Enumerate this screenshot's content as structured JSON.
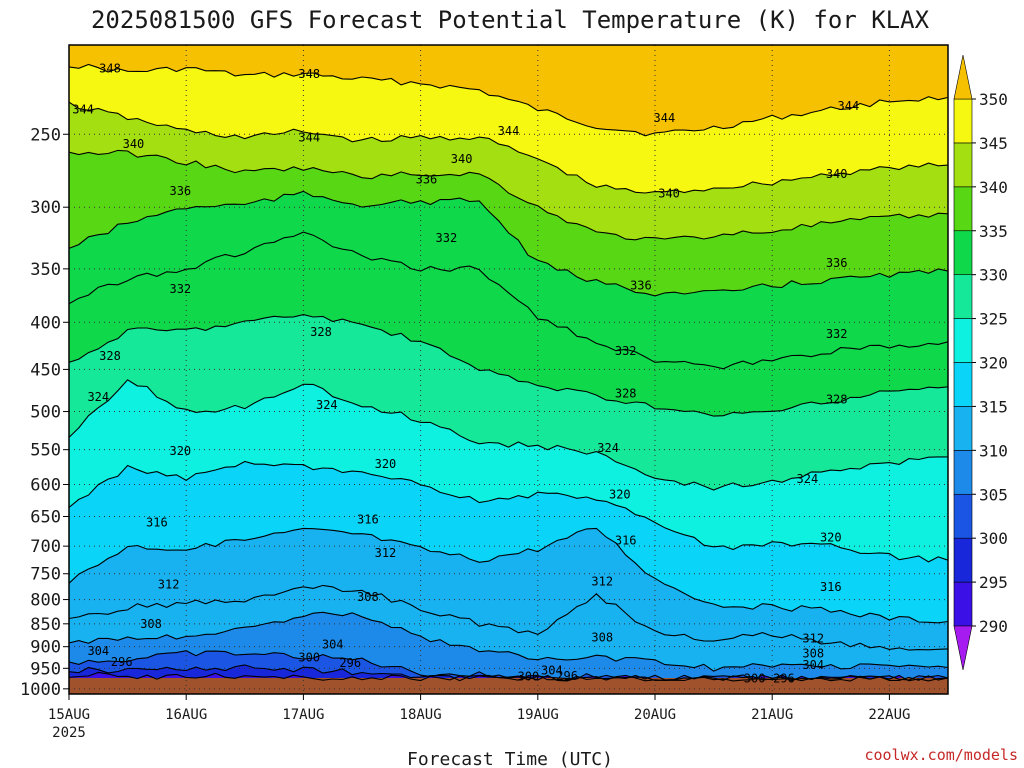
{
  "chart_data": {
    "type": "heatmap",
    "title": "2025081500 GFS Forecast Potential Temperature (K) for KLAX",
    "xlabel": "Forecast Time (UTC)",
    "ylabel": "",
    "credit": "coolwx.com/models",
    "x_ticks": [
      "15AUG",
      "16AUG",
      "17AUG",
      "18AUG",
      "19AUG",
      "20AUG",
      "21AUG",
      "22AUG"
    ],
    "x_year": "2025",
    "xlim_days": [
      0,
      7.5
    ],
    "y_ticks": [
      250,
      300,
      350,
      400,
      450,
      500,
      550,
      600,
      650,
      700,
      750,
      800,
      850,
      900,
      950,
      1000
    ],
    "ylim_hpa": [
      200,
      1013
    ],
    "y_scale": "log",
    "grid": true,
    "colorbar": {
      "levels": [
        290,
        295,
        300,
        305,
        310,
        315,
        320,
        325,
        330,
        335,
        340,
        345,
        350
      ],
      "labels": [
        "290",
        "295",
        "300",
        "305",
        "310",
        "315",
        "320",
        "325",
        "330",
        "335",
        "340",
        "345",
        "350"
      ],
      "colors": [
        "#a51bf0",
        "#3a10e6",
        "#1727d9",
        "#1a56e3",
        "#1d8aea",
        "#19b2f1",
        "#0ad4f8",
        "#0ef0e0",
        "#16e89a",
        "#10d84b",
        "#58d815",
        "#a4e011",
        "#f6f812",
        "#f5c100"
      ]
    },
    "isentropes": [
      {
        "theta": 296,
        "p": [
          965,
          968,
          970,
          968,
          972,
          978,
          988,
          990,
          992,
          990,
          994,
          996,
          996,
          996,
          996,
          997
        ]
      },
      {
        "theta": 300,
        "p": [
          955,
          955,
          950,
          948,
          952,
          960,
          978,
          982,
          986,
          982,
          988,
          992,
          992,
          993,
          992,
          994
        ]
      },
      {
        "theta": 304,
        "p": [
          935,
          930,
          915,
          915,
          922,
          930,
          962,
          965,
          972,
          968,
          975,
          980,
          978,
          980,
          980,
          982
        ]
      },
      {
        "theta": 308,
        "p": [
          895,
          880,
          880,
          860,
          832,
          830,
          880,
          905,
          930,
          925,
          935,
          950,
          942,
          945,
          945,
          948
        ]
      },
      {
        "theta": 312,
        "p": [
          845,
          815,
          808,
          800,
          775,
          780,
          820,
          850,
          870,
          790,
          868,
          885,
          870,
          892,
          905,
          905
        ]
      },
      {
        "theta": 316,
        "p": [
          765,
          700,
          705,
          690,
          672,
          680,
          705,
          725,
          705,
          668,
          760,
          810,
          815,
          822,
          838,
          845
        ]
      },
      {
        "theta": 320,
        "p": [
          635,
          575,
          590,
          570,
          575,
          585,
          600,
          625,
          615,
          620,
          660,
          705,
          695,
          700,
          718,
          725
        ]
      },
      {
        "theta": 324,
        "p": [
          535,
          460,
          500,
          495,
          465,
          492,
          510,
          540,
          545,
          555,
          590,
          605,
          595,
          580,
          570,
          560
        ]
      },
      {
        "theta": 328,
        "p": [
          445,
          408,
          408,
          400,
          392,
          402,
          420,
          450,
          468,
          480,
          495,
          505,
          500,
          488,
          475,
          470
        ]
      },
      {
        "theta": 332,
        "p": [
          380,
          358,
          350,
          335,
          320,
          340,
          350,
          350,
          395,
          420,
          440,
          448,
          440,
          430,
          425,
          420
        ]
      },
      {
        "theta": 336,
        "p": [
          332,
          312,
          300,
          298,
          290,
          298,
          296,
          295,
          345,
          362,
          372,
          372,
          365,
          360,
          355,
          352
        ]
      },
      {
        "theta": 340,
        "p": [
          262,
          262,
          268,
          275,
          272,
          278,
          276,
          276,
          300,
          320,
          326,
          322,
          318,
          312,
          308,
          305
        ]
      },
      {
        "theta": 344,
        "p": [
          232,
          240,
          248,
          252,
          248,
          254,
          252,
          252,
          266,
          285,
          290,
          286,
          282,
          276,
          272,
          270
        ]
      },
      {
        "theta": 348,
        "p": [
          210,
          214,
          212,
          216,
          215,
          218,
          220,
          224,
          235,
          245,
          250,
          246,
          240,
          235,
          230,
          228
        ]
      }
    ],
    "contour_labels": [
      {
        "text": "348",
        "day": 0.35,
        "p": 212
      },
      {
        "text": "348",
        "day": 2.05,
        "p": 215
      },
      {
        "text": "344",
        "day": 0.12,
        "p": 235
      },
      {
        "text": "344",
        "day": 2.05,
        "p": 252
      },
      {
        "text": "344",
        "day": 3.75,
        "p": 248
      },
      {
        "text": "344",
        "day": 5.08,
        "p": 240
      },
      {
        "text": "344",
        "day": 6.65,
        "p": 233
      },
      {
        "text": "340",
        "day": 0.55,
        "p": 256
      },
      {
        "text": "340",
        "day": 3.35,
        "p": 266
      },
      {
        "text": "340",
        "day": 5.12,
        "p": 290
      },
      {
        "text": "340",
        "day": 6.55,
        "p": 276
      },
      {
        "text": "336",
        "day": 0.95,
        "p": 288
      },
      {
        "text": "336",
        "day": 3.05,
        "p": 280
      },
      {
        "text": "336",
        "day": 4.88,
        "p": 365
      },
      {
        "text": "336",
        "day": 6.55,
        "p": 345
      },
      {
        "text": "332",
        "day": 0.95,
        "p": 368
      },
      {
        "text": "332",
        "day": 3.22,
        "p": 324
      },
      {
        "text": "332",
        "day": 4.75,
        "p": 430
      },
      {
        "text": "332",
        "day": 6.55,
        "p": 412
      },
      {
        "text": "328",
        "day": 0.35,
        "p": 435
      },
      {
        "text": "328",
        "day": 2.15,
        "p": 410
      },
      {
        "text": "328",
        "day": 4.75,
        "p": 478
      },
      {
        "text": "328",
        "day": 6.55,
        "p": 485
      },
      {
        "text": "324",
        "day": 0.25,
        "p": 482
      },
      {
        "text": "324",
        "day": 2.2,
        "p": 492
      },
      {
        "text": "324",
        "day": 4.6,
        "p": 548
      },
      {
        "text": "324",
        "day": 6.3,
        "p": 592
      },
      {
        "text": "320",
        "day": 0.95,
        "p": 552
      },
      {
        "text": "320",
        "day": 2.7,
        "p": 570
      },
      {
        "text": "320",
        "day": 4.7,
        "p": 615
      },
      {
        "text": "320",
        "day": 6.5,
        "p": 685
      },
      {
        "text": "316",
        "day": 0.75,
        "p": 660
      },
      {
        "text": "316",
        "day": 2.55,
        "p": 655
      },
      {
        "text": "316",
        "day": 4.75,
        "p": 690
      },
      {
        "text": "316",
        "day": 6.5,
        "p": 775
      },
      {
        "text": "312",
        "day": 0.85,
        "p": 770
      },
      {
        "text": "312",
        "day": 2.7,
        "p": 712
      },
      {
        "text": "312",
        "day": 4.55,
        "p": 765
      },
      {
        "text": "312",
        "day": 6.35,
        "p": 882
      },
      {
        "text": "308",
        "day": 0.7,
        "p": 850
      },
      {
        "text": "308",
        "day": 2.55,
        "p": 795
      },
      {
        "text": "308",
        "day": 4.55,
        "p": 880
      },
      {
        "text": "308",
        "day": 6.35,
        "p": 915
      },
      {
        "text": "304",
        "day": 0.25,
        "p": 910
      },
      {
        "text": "304",
        "day": 2.25,
        "p": 895
      },
      {
        "text": "304",
        "day": 4.12,
        "p": 955
      },
      {
        "text": "304",
        "day": 6.35,
        "p": 942
      },
      {
        "text": "300",
        "day": 2.05,
        "p": 925
      },
      {
        "text": "300",
        "day": 3.92,
        "p": 970
      },
      {
        "text": "300",
        "day": 5.85,
        "p": 975
      },
      {
        "text": "296",
        "day": 0.45,
        "p": 935
      },
      {
        "text": "296",
        "day": 2.4,
        "p": 938
      },
      {
        "text": "296",
        "day": 4.25,
        "p": 968
      },
      {
        "text": "296",
        "day": 6.1,
        "p": 975
      }
    ]
  }
}
